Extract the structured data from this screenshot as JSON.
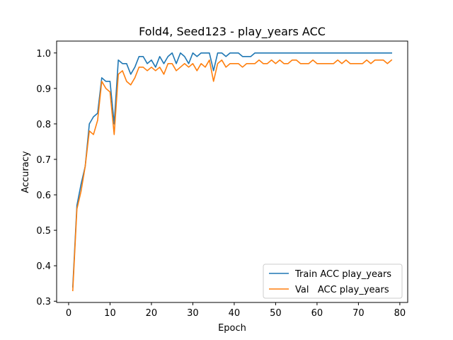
{
  "chart_data": {
    "type": "line",
    "title": "Fold4, Seed123 - play_years ACC",
    "xlabel": "Epoch",
    "ylabel": "Accuracy",
    "xlim": [
      -2.9,
      81.9
    ],
    "ylim": [
      0.2965,
      1.0335
    ],
    "xticks": [
      0,
      10,
      20,
      30,
      40,
      50,
      60,
      70,
      80
    ],
    "yticks": [
      0.3,
      0.4,
      0.5,
      0.6,
      0.7,
      0.8,
      0.9,
      1.0
    ],
    "legend_position": "lower-right",
    "grid": false,
    "series": [
      {
        "name": "Train ACC play_years",
        "color": "#1f77b4",
        "x": [
          1,
          2,
          3,
          4,
          5,
          6,
          7,
          8,
          9,
          10,
          11,
          12,
          13,
          14,
          15,
          16,
          17,
          18,
          19,
          20,
          21,
          22,
          23,
          24,
          25,
          26,
          27,
          28,
          29,
          30,
          31,
          32,
          33,
          34,
          35,
          36,
          37,
          38,
          39,
          40,
          41,
          42,
          43,
          44,
          45,
          46,
          47,
          48,
          49,
          50,
          51,
          52,
          53,
          54,
          55,
          56,
          57,
          58,
          59,
          60,
          61,
          62,
          63,
          64,
          65,
          66,
          67,
          68,
          69,
          70,
          71,
          72,
          73,
          74,
          75,
          76,
          77,
          78
        ],
        "y": [
          0.34,
          0.57,
          0.63,
          0.68,
          0.8,
          0.82,
          0.83,
          0.93,
          0.92,
          0.92,
          0.8,
          0.98,
          0.97,
          0.97,
          0.94,
          0.96,
          0.99,
          0.99,
          0.97,
          0.98,
          0.96,
          0.99,
          0.97,
          0.99,
          1.0,
          0.97,
          1.0,
          0.99,
          0.97,
          1.0,
          0.99,
          1.0,
          1.0,
          1.0,
          0.95,
          1.0,
          1.0,
          0.99,
          1.0,
          1.0,
          1.0,
          0.99,
          0.99,
          0.99,
          1.0,
          1.0,
          1.0,
          1.0,
          1.0,
          1.0,
          1.0,
          1.0,
          1.0,
          1.0,
          1.0,
          1.0,
          1.0,
          1.0,
          1.0,
          1.0,
          1.0,
          1.0,
          1.0,
          1.0,
          1.0,
          1.0,
          1.0,
          1.0,
          1.0,
          1.0,
          1.0,
          1.0,
          1.0,
          1.0,
          1.0,
          1.0,
          1.0,
          1.0
        ]
      },
      {
        "name": "Val   ACC play_years",
        "color": "#ff7f0e",
        "x": [
          1,
          2,
          3,
          4,
          5,
          6,
          7,
          8,
          9,
          10,
          11,
          12,
          13,
          14,
          15,
          16,
          17,
          18,
          19,
          20,
          21,
          22,
          23,
          24,
          25,
          26,
          27,
          28,
          29,
          30,
          31,
          32,
          33,
          34,
          35,
          36,
          37,
          38,
          39,
          40,
          41,
          42,
          43,
          44,
          45,
          46,
          47,
          48,
          49,
          50,
          51,
          52,
          53,
          54,
          55,
          56,
          57,
          58,
          59,
          60,
          61,
          62,
          63,
          64,
          65,
          66,
          67,
          68,
          69,
          70,
          71,
          72,
          73,
          74,
          75,
          76,
          77,
          78
        ],
        "y": [
          0.33,
          0.56,
          0.61,
          0.68,
          0.78,
          0.77,
          0.81,
          0.92,
          0.9,
          0.89,
          0.77,
          0.94,
          0.95,
          0.92,
          0.91,
          0.93,
          0.96,
          0.96,
          0.95,
          0.96,
          0.95,
          0.96,
          0.94,
          0.97,
          0.97,
          0.95,
          0.96,
          0.97,
          0.96,
          0.97,
          0.95,
          0.97,
          0.96,
          0.98,
          0.92,
          0.97,
          0.98,
          0.96,
          0.97,
          0.97,
          0.97,
          0.96,
          0.97,
          0.97,
          0.97,
          0.98,
          0.97,
          0.97,
          0.98,
          0.97,
          0.98,
          0.97,
          0.97,
          0.98,
          0.98,
          0.97,
          0.97,
          0.97,
          0.98,
          0.97,
          0.97,
          0.97,
          0.97,
          0.97,
          0.98,
          0.97,
          0.98,
          0.97,
          0.97,
          0.97,
          0.97,
          0.98,
          0.97,
          0.98,
          0.98,
          0.98,
          0.97,
          0.98
        ]
      }
    ]
  }
}
